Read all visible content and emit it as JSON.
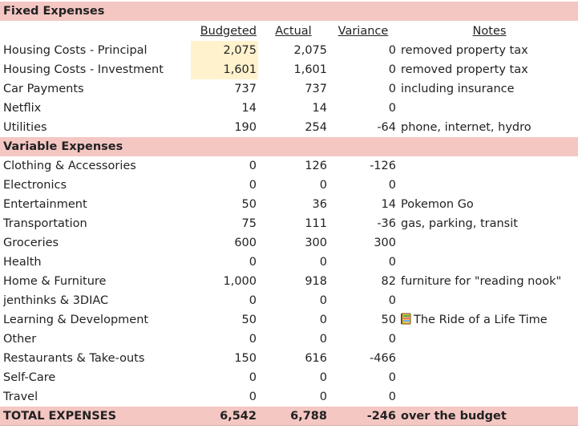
{
  "fixed_header": "Fixed Expenses",
  "columns": {
    "budgeted": "Budgeted",
    "actual": "Actual",
    "variance": "Variance",
    "notes": "Notes"
  },
  "fixed": [
    {
      "label": "Housing Costs - Principal",
      "budgeted": "2,075",
      "actual": "2,075",
      "variance": "0",
      "notes": "removed property tax"
    },
    {
      "label": "Housing Costs - Investment",
      "budgeted": "1,601",
      "actual": "1,601",
      "variance": "0",
      "notes": "removed property tax"
    },
    {
      "label": "Car Payments",
      "budgeted": "737",
      "actual": "737",
      "variance": "0",
      "notes": "including insurance"
    },
    {
      "label": "Netflix",
      "budgeted": "14",
      "actual": "14",
      "variance": "0",
      "notes": ""
    },
    {
      "label": "Utilities",
      "budgeted": "190",
      "actual": "254",
      "variance": "-64",
      "notes": "phone, internet, hydro"
    }
  ],
  "variable_header": "Variable Expenses",
  "variable": [
    {
      "label": "Clothing & Accessories",
      "budgeted": "0",
      "actual": "126",
      "variance": "-126",
      "notes": ""
    },
    {
      "label": "Electronics",
      "budgeted": "0",
      "actual": "0",
      "variance": "0",
      "notes": ""
    },
    {
      "label": "Entertainment",
      "budgeted": "50",
      "actual": "36",
      "variance": "14",
      "notes": "Pokemon Go"
    },
    {
      "label": "Transportation",
      "budgeted": "75",
      "actual": "111",
      "variance": "-36",
      "notes": "gas, parking, transit"
    },
    {
      "label": "Groceries",
      "budgeted": "600",
      "actual": "300",
      "variance": "300",
      "notes": ""
    },
    {
      "label": "Health",
      "budgeted": "0",
      "actual": "0",
      "variance": "0",
      "notes": ""
    },
    {
      "label": "Home & Furniture",
      "budgeted": "1,000",
      "actual": "918",
      "variance": "82",
      "notes": "furniture for \"reading nook\""
    },
    {
      "label": "jenthinks & 3DIAC",
      "budgeted": "0",
      "actual": "0",
      "variance": "0",
      "notes": ""
    },
    {
      "label": "Learning & Development",
      "budgeted": "50",
      "actual": "0",
      "variance": "50",
      "notes": "The Ride of a Life Time"
    },
    {
      "label": "Other",
      "budgeted": "0",
      "actual": "0",
      "variance": "0",
      "notes": ""
    },
    {
      "label": "Restaurants & Take-outs",
      "budgeted": "150",
      "actual": "616",
      "variance": "-466",
      "notes": ""
    },
    {
      "label": "Self-Care",
      "budgeted": "0",
      "actual": "0",
      "variance": "0",
      "notes": ""
    },
    {
      "label": "Travel",
      "budgeted": "0",
      "actual": "0",
      "variance": "0",
      "notes": ""
    }
  ],
  "total": {
    "label": "TOTAL EXPENSES",
    "budgeted": "6,542",
    "actual": "6,788",
    "variance": "-246",
    "notes": "over the budget"
  },
  "colors": {
    "section_fill": "#f4c7c3",
    "highlight_fill": "#fff2cc"
  },
  "icons": {
    "learning_note_icon": "book-icon"
  }
}
